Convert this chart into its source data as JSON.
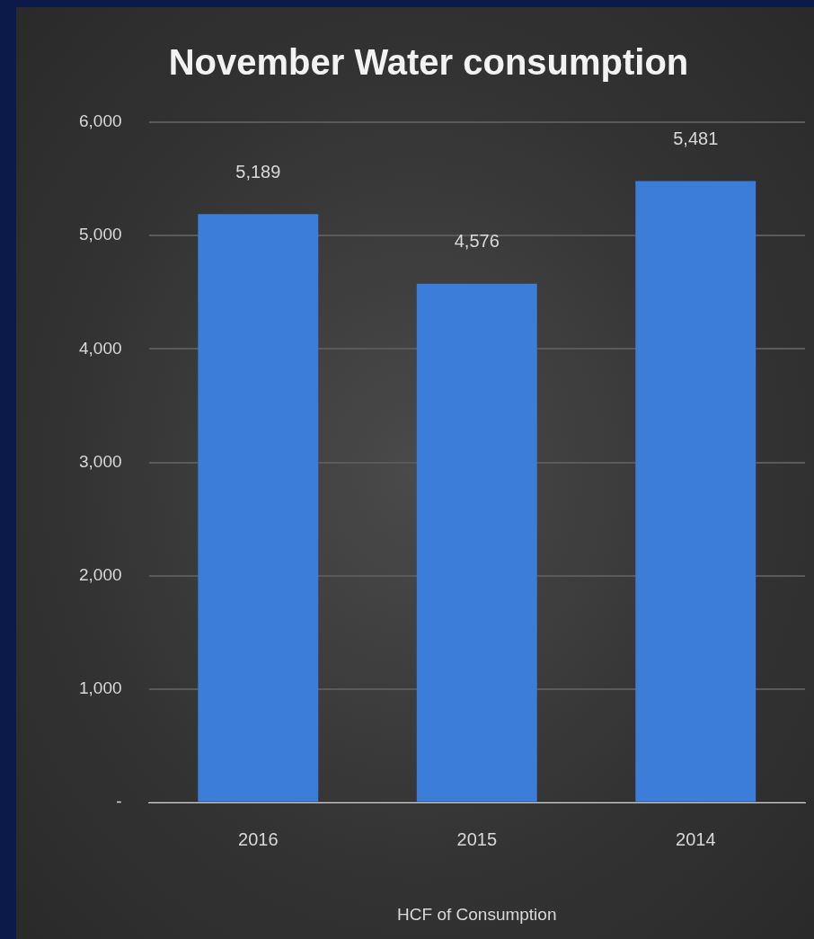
{
  "chart_data": {
    "type": "bar",
    "title": "November Water consumption",
    "xlabel": "HCF of Consumption",
    "categories": [
      "2016",
      "2015",
      "2014"
    ],
    "values": [
      5189,
      4576,
      5481
    ],
    "color": "#3b7dd8",
    "ylim": [
      0,
      6000
    ],
    "yticks": [
      {
        "value": 0,
        "label": "-"
      },
      {
        "value": 1000,
        "label": "1,000"
      },
      {
        "value": 2000,
        "label": "2,000"
      },
      {
        "value": 3000,
        "label": "3,000"
      },
      {
        "value": 4000,
        "label": "4,000"
      },
      {
        "value": 5000,
        "label": "5,000"
      },
      {
        "value": 6000,
        "label": "6,000"
      }
    ],
    "value_labels": [
      "5,189",
      "4,576",
      "5,481"
    ],
    "grid": "y",
    "legend": false
  }
}
